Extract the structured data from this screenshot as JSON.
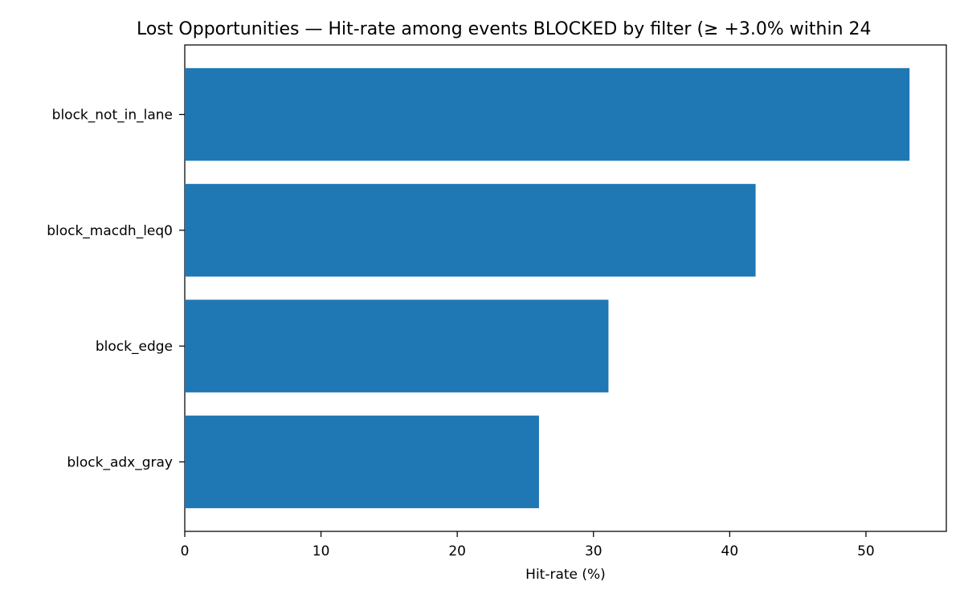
{
  "chart_data": {
    "type": "bar",
    "orientation": "horizontal",
    "title": "Lost Opportunities — Hit-rate among events BLOCKED by filter (≥ +3.0% within 24",
    "xlabel": "Hit-rate (%)",
    "ylabel": "",
    "categories": [
      "block_not_in_lane",
      "block_macdh_leq0",
      "block_edge",
      "block_adx_gray"
    ],
    "values": [
      53.2,
      41.9,
      31.1,
      26.0
    ],
    "xlim": [
      0,
      55.9
    ],
    "xticks": [
      0,
      10,
      20,
      30,
      40,
      50
    ],
    "bar_color": "#1f77b4",
    "grid": false,
    "legend": false
  }
}
